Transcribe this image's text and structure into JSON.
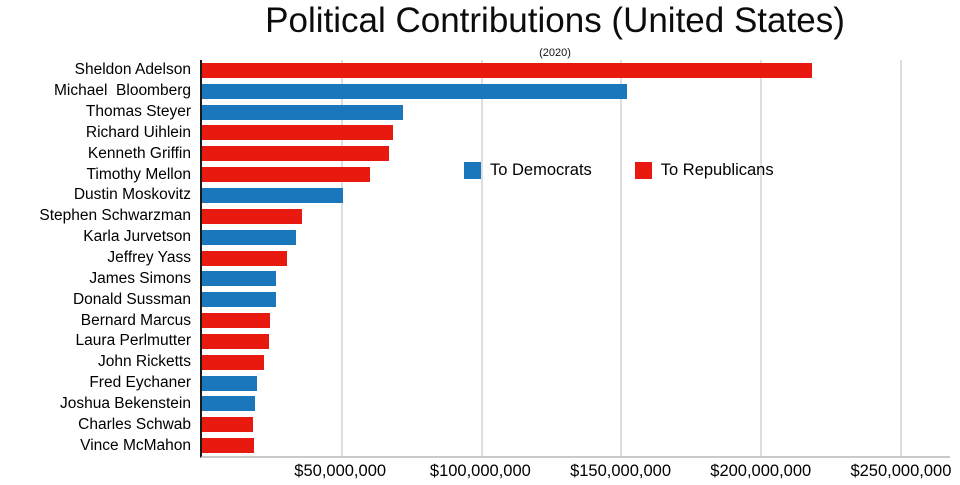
{
  "title": "Political Contributions (United States)",
  "subtitle": "(2020)",
  "legend": {
    "democrats": "To Democrats",
    "republicans": "To Republicans"
  },
  "colors": {
    "democrat": "#1b77bc",
    "republican": "#e8190f",
    "gridline": "#dedede",
    "y_axis_line": "#1a1a1a",
    "baseline": "#c9c9c9",
    "text": "#000000"
  },
  "chart_data": {
    "type": "bar",
    "orientation": "horizontal",
    "title": "Political Contributions (United States)",
    "subtitle": "(2020)",
    "xlabel": "",
    "ylabel": "",
    "xlim": [
      0,
      267500000
    ],
    "grid": "vertical gridlines every $50,000,000",
    "legend_position": "center of plot, inline horizontal",
    "x_ticks": [
      {
        "value": 50000000,
        "label": "$50,000,000"
      },
      {
        "value": 100000000,
        "label": "$100,000,000"
      },
      {
        "value": 150000000,
        "label": "$150,000,000"
      },
      {
        "value": 200000000,
        "label": "$200,000,000"
      },
      {
        "value": 250000000,
        "label": "$250,000,000"
      }
    ],
    "legend_entries": [
      {
        "label": "To Democrats",
        "party": "democrat"
      },
      {
        "label": "To Republicans",
        "party": "republican"
      }
    ],
    "rows": [
      {
        "name": "Sheldon Adelson",
        "party": "republican",
        "value_usd": 218200000
      },
      {
        "name": "Michael  Bloomberg",
        "party": "democrat",
        "value_usd": 152000000
      },
      {
        "name": "Thomas Steyer",
        "party": "democrat",
        "value_usd": 72000000
      },
      {
        "name": "Richard Uihlein",
        "party": "republican",
        "value_usd": 68200000
      },
      {
        "name": "Kenneth Griffin",
        "party": "republican",
        "value_usd": 66800000
      },
      {
        "name": "Timothy Mellon",
        "party": "republican",
        "value_usd": 60000000
      },
      {
        "name": "Dustin Moskovitz",
        "party": "democrat",
        "value_usd": 50500000
      },
      {
        "name": "Stephen Schwarzman",
        "party": "republican",
        "value_usd": 35600000
      },
      {
        "name": "Karla Jurvetson",
        "party": "democrat",
        "value_usd": 33500000
      },
      {
        "name": "Jeffrey Yass",
        "party": "republican",
        "value_usd": 30500000
      },
      {
        "name": "James Simons",
        "party": "democrat",
        "value_usd": 26500000
      },
      {
        "name": "Donald Sussman",
        "party": "democrat",
        "value_usd": 26300000
      },
      {
        "name": "Bernard Marcus",
        "party": "republican",
        "value_usd": 24400000
      },
      {
        "name": "Laura Perlmutter",
        "party": "republican",
        "value_usd": 24000000
      },
      {
        "name": "John Ricketts",
        "party": "republican",
        "value_usd": 22000000
      },
      {
        "name": "Fred Eychaner",
        "party": "democrat",
        "value_usd": 19700000
      },
      {
        "name": "Joshua Bekenstein",
        "party": "democrat",
        "value_usd": 18800000
      },
      {
        "name": "Charles Schwab",
        "party": "republican",
        "value_usd": 18400000
      },
      {
        "name": "Vince McMahon",
        "party": "republican",
        "value_usd": 18500000
      }
    ]
  }
}
